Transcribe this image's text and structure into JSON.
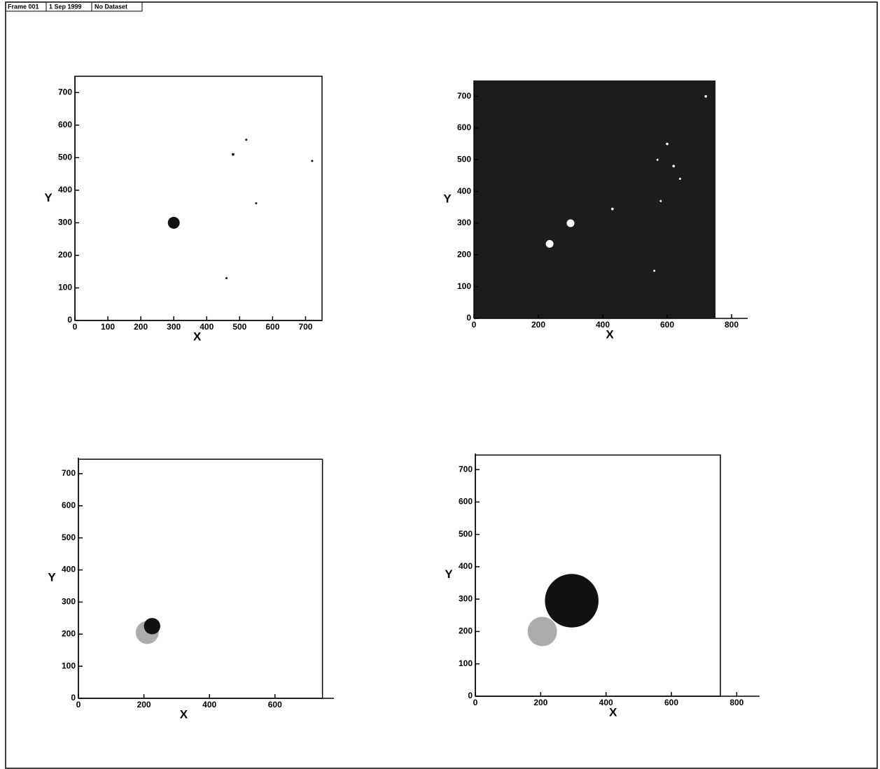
{
  "header": [
    "Frame 001",
    "1 Sep 1999",
    "No Dataset"
  ],
  "chart_data": [
    {
      "type": "scatter",
      "xlabel": "X",
      "ylabel": "Y",
      "xlim": [
        0,
        750
      ],
      "ylim": [
        0,
        750
      ],
      "xticks": [
        0,
        100,
        200,
        300,
        400,
        500,
        600,
        700
      ],
      "yticks": [
        0,
        100,
        200,
        300,
        400,
        500,
        600,
        700
      ],
      "frame": true,
      "background": "#ffffff",
      "series": [
        {
          "color": "#111111",
          "x": [
            300,
            480,
            520,
            720,
            550,
            460
          ],
          "values": [
            300,
            510,
            555,
            490,
            360,
            130
          ],
          "sizes": [
            18,
            4,
            3,
            3,
            3,
            3
          ]
        }
      ]
    },
    {
      "type": "scatter",
      "xlabel": "X",
      "ylabel": "Y",
      "xlim": [
        0,
        850
      ],
      "ylim": [
        0,
        750
      ],
      "xticks": [
        0,
        200,
        400,
        600,
        800
      ],
      "yticks": [
        0,
        100,
        200,
        300,
        400,
        500,
        600,
        700
      ],
      "frame": false,
      "background": "#1c1c1c",
      "background_extent": [
        750,
        750
      ],
      "series": [
        {
          "color": "#ffffff",
          "x": [
            300,
            235,
            430,
            600,
            620,
            570,
            580,
            560,
            720,
            640
          ],
          "values": [
            300,
            235,
            345,
            550,
            480,
            500,
            370,
            150,
            700,
            440
          ],
          "sizes": [
            12,
            12,
            4,
            4,
            4,
            3,
            3,
            3,
            4,
            3
          ]
        }
      ]
    },
    {
      "type": "scatter",
      "xlabel": "X",
      "ylabel": "Y",
      "xlim": [
        0,
        780
      ],
      "ylim": [
        0,
        750
      ],
      "xticks": [
        0,
        200,
        400,
        600
      ],
      "yticks": [
        0,
        100,
        200,
        300,
        400,
        500,
        600,
        700
      ],
      "frame": true,
      "background": "#ffffff",
      "frame_extent": [
        745,
        745
      ],
      "series": [
        {
          "color": "#111111",
          "x": [
            225,
            210
          ],
          "values": [
            225,
            205
          ],
          "sizes": [
            25,
            35
          ]
        }
      ]
    },
    {
      "type": "scatter",
      "xlabel": "X",
      "ylabel": "Y",
      "xlim": [
        0,
        870
      ],
      "ylim": [
        0,
        750
      ],
      "xticks": [
        0,
        200,
        400,
        600,
        800
      ],
      "yticks": [
        0,
        100,
        200,
        300,
        400,
        500,
        600,
        700
      ],
      "frame": true,
      "background": "#ffffff",
      "frame_extent": [
        750,
        745
      ],
      "series": [
        {
          "color": "#111111",
          "x": [
            295,
            205
          ],
          "values": [
            295,
            200
          ],
          "sizes": [
            82,
            45
          ]
        }
      ]
    }
  ]
}
